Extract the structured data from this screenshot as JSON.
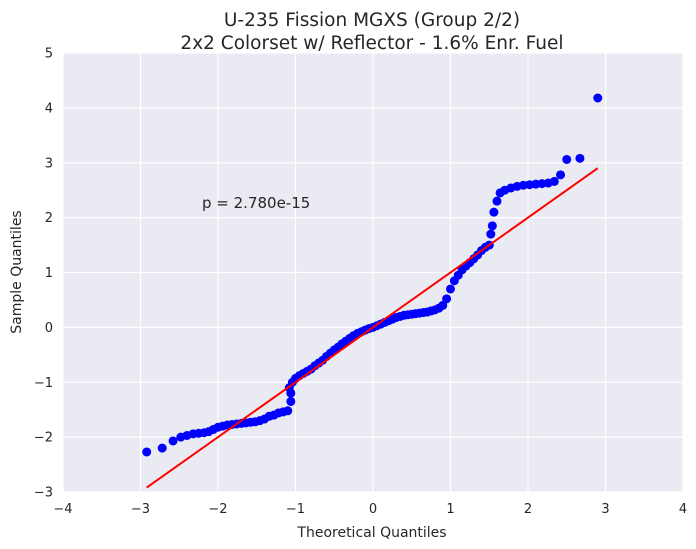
{
  "chart_data": {
    "type": "scatter",
    "title_line1": "U-235 Fission MGXS (Group 2/2)",
    "title_line2": "2x2 Colorset w/ Reflector - 1.6% Enr. Fuel",
    "xlabel": "Theoretical Quantiles",
    "ylabel": "Sample Quantiles",
    "xlim": [
      -4,
      4
    ],
    "ylim": [
      -3,
      5
    ],
    "xticks": [
      -4,
      -3,
      -2,
      -1,
      0,
      1,
      2,
      3,
      4
    ],
    "xtick_labels": [
      "−4",
      "−3",
      "−2",
      "−1",
      "0",
      "1",
      "2",
      "3",
      "4"
    ],
    "yticks": [
      -3,
      -2,
      -1,
      0,
      1,
      2,
      3,
      4,
      5
    ],
    "ytick_labels": [
      "−3",
      "−2",
      "−1",
      "0",
      "1",
      "2",
      "3",
      "4",
      "5"
    ],
    "grid": true,
    "annotation": "p = 2.780e-15",
    "colors": {
      "background": "#eaeaf2",
      "grid": "#ffffff",
      "points": "#0000ff",
      "fit_line": "#ff0000"
    },
    "fit_line": {
      "x": [
        -2.92,
        2.9
      ],
      "y": [
        -2.92,
        2.9
      ]
    },
    "points": [
      [
        -2.92,
        -2.27
      ],
      [
        -2.72,
        -2.2
      ],
      [
        -2.58,
        -2.07
      ],
      [
        -2.48,
        -2.0
      ],
      [
        -2.4,
        -1.97
      ],
      [
        -2.32,
        -1.94
      ],
      [
        -2.25,
        -1.93
      ],
      [
        -2.18,
        -1.92
      ],
      [
        -2.12,
        -1.9
      ],
      [
        -2.06,
        -1.86
      ],
      [
        -2.0,
        -1.82
      ],
      [
        -1.94,
        -1.8
      ],
      [
        -1.88,
        -1.78
      ],
      [
        -1.82,
        -1.77
      ],
      [
        -1.76,
        -1.76
      ],
      [
        -1.7,
        -1.75
      ],
      [
        -1.64,
        -1.74
      ],
      [
        -1.58,
        -1.73
      ],
      [
        -1.52,
        -1.72
      ],
      [
        -1.46,
        -1.7
      ],
      [
        -1.4,
        -1.67
      ],
      [
        -1.34,
        -1.62
      ],
      [
        -1.28,
        -1.6
      ],
      [
        -1.22,
        -1.56
      ],
      [
        -1.16,
        -1.54
      ],
      [
        -1.1,
        -1.52
      ],
      [
        -1.06,
        -1.35
      ],
      [
        -1.06,
        -1.2
      ],
      [
        -1.08,
        -1.1
      ],
      [
        -1.04,
        -1.0
      ],
      [
        -1.0,
        -0.93
      ],
      [
        -0.95,
        -0.88
      ],
      [
        -0.9,
        -0.84
      ],
      [
        -0.85,
        -0.8
      ],
      [
        -0.8,
        -0.76
      ],
      [
        -0.75,
        -0.7
      ],
      [
        -0.7,
        -0.65
      ],
      [
        -0.65,
        -0.6
      ],
      [
        -0.6,
        -0.53
      ],
      [
        -0.55,
        -0.47
      ],
      [
        -0.5,
        -0.41
      ],
      [
        -0.45,
        -0.36
      ],
      [
        -0.4,
        -0.3
      ],
      [
        -0.35,
        -0.25
      ],
      [
        -0.3,
        -0.2
      ],
      [
        -0.25,
        -0.15
      ],
      [
        -0.2,
        -0.11
      ],
      [
        -0.15,
        -0.08
      ],
      [
        -0.1,
        -0.05
      ],
      [
        -0.05,
        -0.02
      ],
      [
        0.0,
        0.0
      ],
      [
        0.05,
        0.03
      ],
      [
        0.1,
        0.06
      ],
      [
        0.15,
        0.09
      ],
      [
        0.2,
        0.12
      ],
      [
        0.25,
        0.15
      ],
      [
        0.3,
        0.18
      ],
      [
        0.35,
        0.2
      ],
      [
        0.4,
        0.22
      ],
      [
        0.45,
        0.23
      ],
      [
        0.5,
        0.24
      ],
      [
        0.55,
        0.25
      ],
      [
        0.6,
        0.26
      ],
      [
        0.65,
        0.27
      ],
      [
        0.7,
        0.28
      ],
      [
        0.75,
        0.3
      ],
      [
        0.8,
        0.32
      ],
      [
        0.85,
        0.35
      ],
      [
        0.9,
        0.4
      ],
      [
        0.95,
        0.52
      ],
      [
        1.0,
        0.7
      ],
      [
        1.05,
        0.85
      ],
      [
        1.1,
        0.95
      ],
      [
        1.15,
        1.05
      ],
      [
        1.2,
        1.12
      ],
      [
        1.25,
        1.18
      ],
      [
        1.3,
        1.25
      ],
      [
        1.35,
        1.32
      ],
      [
        1.4,
        1.4
      ],
      [
        1.45,
        1.46
      ],
      [
        1.5,
        1.5
      ],
      [
        1.52,
        1.7
      ],
      [
        1.54,
        1.85
      ],
      [
        1.56,
        2.1
      ],
      [
        1.6,
        2.3
      ],
      [
        1.64,
        2.45
      ],
      [
        1.7,
        2.5
      ],
      [
        1.78,
        2.54
      ],
      [
        1.86,
        2.57
      ],
      [
        1.94,
        2.59
      ],
      [
        2.02,
        2.6
      ],
      [
        2.1,
        2.61
      ],
      [
        2.18,
        2.62
      ],
      [
        2.26,
        2.63
      ],
      [
        2.34,
        2.66
      ],
      [
        2.42,
        2.78
      ],
      [
        2.5,
        3.06
      ],
      [
        2.67,
        3.08
      ],
      [
        2.9,
        4.18
      ]
    ]
  }
}
